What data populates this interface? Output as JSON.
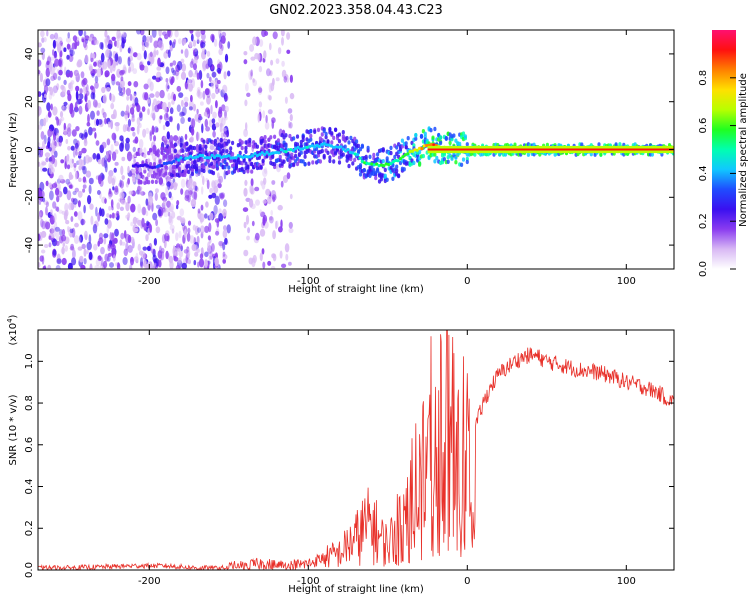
{
  "figure": {
    "title": "GN02.2023.358.04.43.C23"
  },
  "chart_data": [
    {
      "type": "heatmap",
      "xlabel": "Height of straight line (km)",
      "ylabel": "Frequency (Hz)",
      "xlim": [
        -270,
        130
      ],
      "ylim": [
        -50,
        50
      ],
      "x_ticks": [
        -200,
        -100,
        0,
        100
      ],
      "x_tick_labels": [
        "-200",
        "-100",
        "0",
        "100"
      ],
      "y_ticks": [
        -40,
        -20,
        0,
        20,
        40
      ],
      "y_tick_labels": [
        "-40",
        "-20",
        "0",
        "20",
        "40"
      ],
      "grid": false,
      "colorbar": {
        "label": "Normalized spectral amplitude",
        "range": [
          0,
          1
        ],
        "ticks": [
          0.0,
          0.2,
          0.4,
          0.6,
          0.8
        ],
        "tick_labels": [
          "0.0",
          "0.2",
          "0.4",
          "0.6",
          "0.8"
        ],
        "colormap": "rainbow",
        "colors": [
          "#ffffff",
          "#d8b8f4",
          "#8a3cf0",
          "#3a10f0",
          "#1f4cff",
          "#10c8ff",
          "#00ffb0",
          "#20ff20",
          "#b8ff00",
          "#ffe000",
          "#ff8000",
          "#ff1010",
          "#ff1070"
        ]
      },
      "ridge": {
        "x": [
          -210,
          -195,
          -180,
          -170,
          -160,
          -150,
          -140,
          -130,
          -120,
          -110,
          -100,
          -90,
          -80,
          -70,
          -65,
          -60,
          -55,
          -50,
          -45,
          -40,
          -35,
          -30,
          -25,
          -20,
          -15,
          -10,
          -5,
          0,
          10,
          20,
          40,
          60,
          80,
          100,
          130
        ],
        "frequency": [
          -7,
          -7,
          -4,
          -3,
          -3,
          -3,
          -3,
          -2,
          -1,
          0,
          1,
          2,
          1,
          -2,
          -5,
          -6,
          -7,
          -6,
          -5,
          -3,
          -1,
          0,
          2,
          2,
          0,
          0,
          0,
          0,
          0,
          0,
          0,
          0,
          0,
          0,
          0
        ],
        "amplitude": [
          0.25,
          0.3,
          0.4,
          0.45,
          0.45,
          0.45,
          0.45,
          0.45,
          0.45,
          0.48,
          0.48,
          0.45,
          0.45,
          0.5,
          0.55,
          0.55,
          0.6,
          0.6,
          0.55,
          0.6,
          0.7,
          0.8,
          0.9,
          0.88,
          0.85,
          0.9,
          0.9,
          0.9,
          0.9,
          0.9,
          0.9,
          0.9,
          0.9,
          0.9,
          0.9
        ]
      },
      "noise_columns": {
        "x_range_dense": [
          -270,
          -150
        ],
        "x_range_sparse": [
          -140,
          -110
        ],
        "frequency_range": [
          -50,
          50
        ],
        "amplitude_range": [
          0.05,
          0.25
        ]
      }
    },
    {
      "type": "line",
      "xlabel": "Height of straight line (km)",
      "ylabel": "SNR (10 * v/v)",
      "y_multiplier_label": "(x10",
      "y_multiplier_exponent": "4",
      "y_multiplier_close": ")",
      "xlim": [
        -270,
        130
      ],
      "ylim": [
        0,
        1.15
      ],
      "x_ticks": [
        -200,
        -100,
        0,
        100
      ],
      "x_tick_labels": [
        "-200",
        "-100",
        "0",
        "100"
      ],
      "y_ticks": [
        0.0,
        0.2,
        0.4,
        0.6,
        0.8,
        1.0
      ],
      "y_tick_labels": [
        "0.0",
        "0.2",
        "0.4",
        "0.6",
        "0.8",
        "1.0"
      ],
      "grid": false,
      "series": [
        {
          "color": "#e8312a",
          "x": [
            -270,
            -250,
            -230,
            -210,
            -190,
            -170,
            -150,
            -140,
            -130,
            -120,
            -110,
            -100,
            -90,
            -80,
            -75,
            -70,
            -65,
            -60,
            -55,
            -50,
            -45,
            -40,
            -35,
            -30,
            -25,
            -20,
            -15,
            -10,
            -5,
            0,
            5,
            10,
            15,
            20,
            25,
            30,
            35,
            40,
            45,
            50,
            55,
            60,
            70,
            80,
            90,
            100,
            110,
            120,
            130
          ],
          "y": [
            0.01,
            0.01,
            0.015,
            0.02,
            0.02,
            0.01,
            0.01,
            0.02,
            0.03,
            0.02,
            0.02,
            0.03,
            0.06,
            0.08,
            0.12,
            0.15,
            0.2,
            0.22,
            0.15,
            0.12,
            0.18,
            0.25,
            0.35,
            0.45,
            0.55,
            0.65,
            0.7,
            0.6,
            0.55,
            0.6,
            0.68,
            0.8,
            0.88,
            0.94,
            0.97,
            1.0,
            1.02,
            1.03,
            1.02,
            1.0,
            0.99,
            0.98,
            0.96,
            0.95,
            0.93,
            0.9,
            0.88,
            0.85,
            0.8
          ]
        }
      ]
    }
  ]
}
